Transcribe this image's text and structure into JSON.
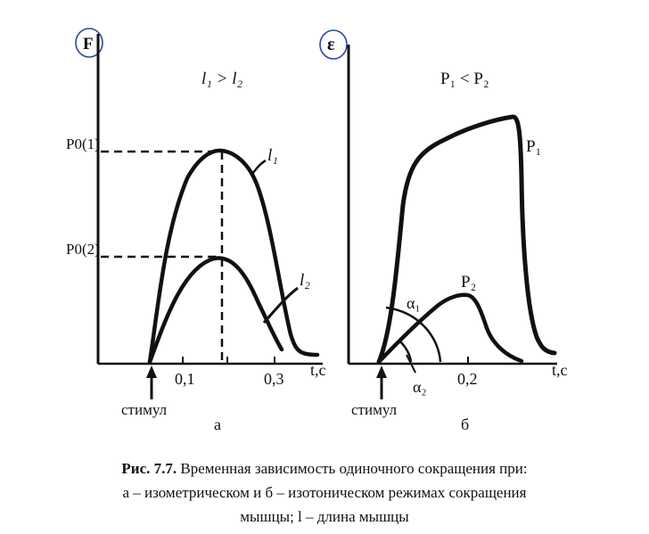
{
  "panel_a": {
    "y_axis_label": "F",
    "condition": "l₁ > l₂",
    "level_upper": "P0(1)",
    "level_lower": "P0(2)",
    "curve_upper": "l₁",
    "curve_lower": "l₂",
    "tick_1": "0,1",
    "tick_2": "0,3",
    "x_axis_label": "t,с",
    "stimulus": "стимул",
    "panel_letter": "а"
  },
  "panel_b": {
    "y_axis_label": "ε",
    "condition": "P₁ < P₂",
    "curve_upper": "P₁",
    "curve_lower": "P₂",
    "angle_1": "α₁",
    "angle_2": "α₂",
    "tick_1": "0,2",
    "x_axis_label": "t,с",
    "stimulus": "стимул",
    "panel_letter": "б"
  },
  "caption": {
    "label": "Рис. 7.7.",
    "line1": "Временная зависимость одиночного сокращения при:",
    "line2": "а – изометрическом и б – изотоническом режимах сокращения",
    "line3": "мышцы; l – длина мышцы"
  },
  "colors": {
    "ink": "#111111",
    "annotation_circle": "#2a4a9a"
  }
}
